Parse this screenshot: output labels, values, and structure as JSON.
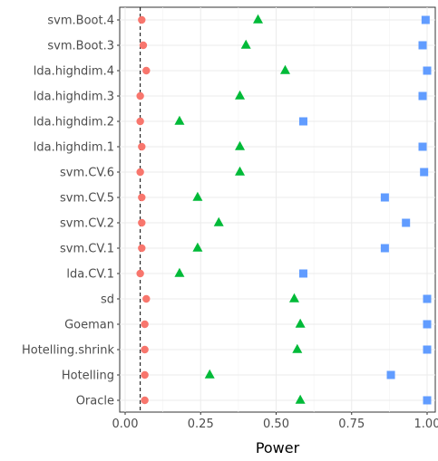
{
  "chart_data": {
    "type": "scatter",
    "xlabel": "Power",
    "ylabel": "",
    "xlim": [
      0,
      1
    ],
    "x_ticks": [
      0.0,
      0.25,
      0.5,
      0.75,
      1.0
    ],
    "x_tick_labels": [
      "0.00",
      "0.25",
      "0.50",
      "0.75",
      "1.00"
    ],
    "categories": [
      "svm.Boot.4",
      "svm.Boot.3",
      "lda.highdim.4",
      "lda.highdim.3",
      "lda.highdim.2",
      "lda.highdim.1",
      "svm.CV.6",
      "svm.CV.5",
      "svm.CV.2",
      "svm.CV.1",
      "lda.CV.1",
      "sd",
      "Goeman",
      "Hotelling.shrink",
      "Hotelling",
      "Oracle"
    ],
    "reference_line": {
      "x": 0.05,
      "style": "dashed"
    },
    "grid": true,
    "series": [
      {
        "shape": "circle",
        "color": "#F8766D",
        "values": [
          0.055,
          0.06,
          0.07,
          0.05,
          0.05,
          0.055,
          0.05,
          0.055,
          0.055,
          0.055,
          0.05,
          0.07,
          0.065,
          0.065,
          0.065,
          0.065
        ]
      },
      {
        "shape": "triangle",
        "color": "#00BA38",
        "values": [
          0.44,
          0.4,
          0.53,
          0.38,
          0.18,
          0.38,
          0.38,
          0.24,
          0.31,
          0.24,
          0.18,
          0.56,
          0.58,
          0.57,
          0.28,
          0.58
        ]
      },
      {
        "shape": "square",
        "color": "#619CFF",
        "values": [
          0.995,
          0.985,
          1.0,
          0.985,
          0.59,
          0.985,
          0.99,
          0.86,
          0.93,
          0.86,
          0.59,
          1.0,
          1.0,
          1.0,
          0.88,
          1.0
        ]
      }
    ]
  }
}
